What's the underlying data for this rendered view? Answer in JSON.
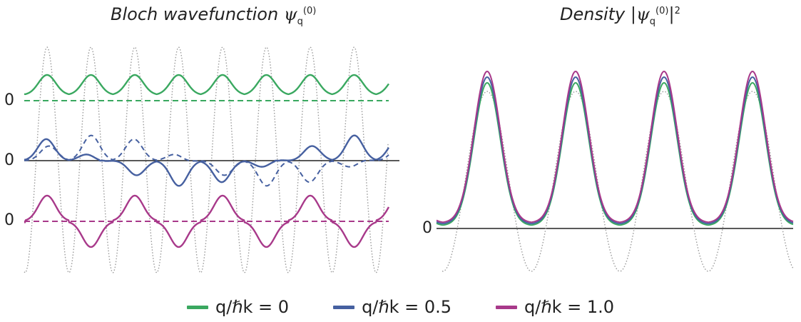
{
  "left_panel": {
    "title_text": "Bloch wavefunction ",
    "title_symbol": "ψ",
    "title_sub": "q",
    "title_sup": "(0)",
    "zero_labels": [
      "0",
      "0",
      "0"
    ]
  },
  "right_panel": {
    "title_text": "Density ",
    "title_symbol": "|ψ",
    "title_sub": "q",
    "title_sup": "(0)",
    "title_tail": "|",
    "title_power": "2",
    "zero_label": "0"
  },
  "legend": [
    {
      "label": "q/ℏk = 0",
      "color": "#3aa860"
    },
    {
      "label": "q/ℏk = 0.5",
      "color": "#4660a0"
    },
    {
      "label": "q/ℏk = 1.0",
      "color": "#a8398a"
    }
  ],
  "colors": {
    "green": "#3aa860",
    "blue": "#4660a0",
    "magenta": "#a8398a",
    "potential": "#9a9a9a",
    "axis": "#222222"
  }
}
